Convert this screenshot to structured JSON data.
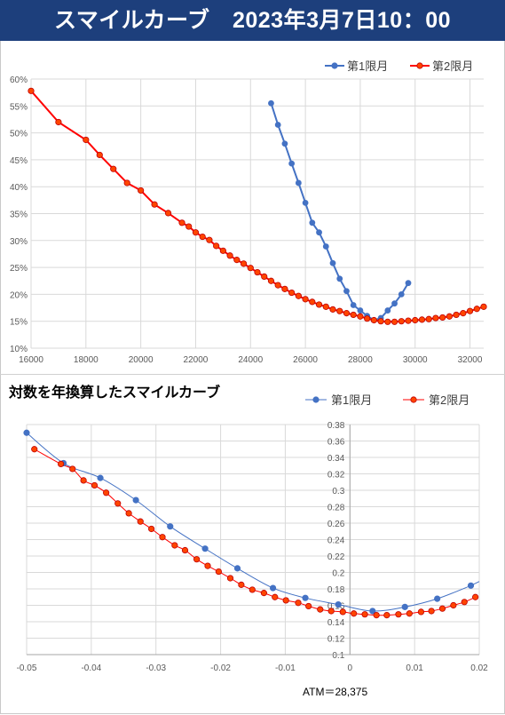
{
  "header": {
    "title": "スマイルカーブ　2023年3月7日10：00"
  },
  "chart2_title": "対数を年換算したスマイルカーブ",
  "atm_label": "ATM＝28,375",
  "colors": {
    "header_bg": "#1d3f7c",
    "series1": "#4472c4",
    "series2": "#ff0000",
    "series2_marker": "#ff4500"
  },
  "chart_data": [
    {
      "type": "line",
      "title": "",
      "xlim": [
        16000,
        32500
      ],
      "ylim": [
        0.1,
        0.6
      ],
      "x_ticks": [
        16000,
        18000,
        20000,
        22000,
        24000,
        26000,
        28000,
        30000,
        32000
      ],
      "y_ticks": [
        0.1,
        0.15,
        0.2,
        0.25,
        0.3,
        0.35,
        0.4,
        0.45,
        0.5,
        0.55,
        0.6
      ],
      "y_tick_labels": [
        "10%",
        "15%",
        "20%",
        "25%",
        "30%",
        "35%",
        "40%",
        "45%",
        "50%",
        "55%",
        "60%"
      ],
      "legend_position": "top-right",
      "grid": true,
      "series": [
        {
          "name": "第1限月",
          "x": [
            24750,
            25000,
            25250,
            25500,
            25750,
            26000,
            26250,
            26500,
            26750,
            27000,
            27250,
            27500,
            27750,
            28000,
            28250,
            28500,
            28750,
            29000,
            29250,
            29500,
            29750
          ],
          "y": [
            0.555,
            0.515,
            0.48,
            0.443,
            0.407,
            0.37,
            0.333,
            0.315,
            0.289,
            0.258,
            0.229,
            0.206,
            0.18,
            0.17,
            0.16,
            0.152,
            0.156,
            0.17,
            0.183,
            0.2,
            0.221
          ]
        },
        {
          "name": "第2限月",
          "x": [
            16000,
            17000,
            18000,
            18500,
            19000,
            19500,
            20000,
            20500,
            21000,
            21500,
            21750,
            22000,
            22250,
            22500,
            22750,
            23000,
            23250,
            23500,
            23750,
            24000,
            24250,
            24500,
            24750,
            25000,
            25250,
            25500,
            25750,
            26000,
            26250,
            26500,
            26750,
            27000,
            27250,
            27500,
            27750,
            28000,
            28250,
            28500,
            28750,
            29000,
            29250,
            29500,
            29750,
            30000,
            30250,
            30500,
            30750,
            31000,
            31250,
            31500,
            31750,
            32000,
            32250,
            32500
          ],
          "y": [
            0.578,
            0.52,
            0.487,
            0.459,
            0.433,
            0.407,
            0.393,
            0.367,
            0.351,
            0.333,
            0.326,
            0.315,
            0.307,
            0.301,
            0.29,
            0.281,
            0.272,
            0.264,
            0.257,
            0.249,
            0.241,
            0.233,
            0.225,
            0.217,
            0.21,
            0.203,
            0.197,
            0.191,
            0.186,
            0.181,
            0.177,
            0.172,
            0.169,
            0.165,
            0.162,
            0.159,
            0.155,
            0.152,
            0.15,
            0.149,
            0.149,
            0.15,
            0.151,
            0.152,
            0.153,
            0.154,
            0.156,
            0.157,
            0.159,
            0.162,
            0.165,
            0.169,
            0.173,
            0.177
          ]
        }
      ]
    },
    {
      "type": "line",
      "title": "対数を年換算したスマイルカーブ",
      "xlim": [
        -0.05,
        0.02
      ],
      "ylim": [
        0.1,
        0.38
      ],
      "x_ticks": [
        -0.05,
        -0.04,
        -0.03,
        -0.02,
        -0.01,
        0,
        0.01,
        0.02
      ],
      "x_tick_labels": [
        "-0.05",
        "-0.04",
        "-0.03",
        "-0.02",
        "-0.01",
        "0",
        "0.01",
        "0.02"
      ],
      "y_ticks": [
        0.1,
        0.12,
        0.14,
        0.16,
        0.18,
        0.2,
        0.22,
        0.24,
        0.26,
        0.28,
        0.3,
        0.32,
        0.34,
        0.36,
        0.38
      ],
      "y_tick_labels": [
        "0.1",
        "0.12",
        "0.14",
        "0.16",
        "0.18",
        "0.2",
        "0.22",
        "0.24",
        "0.26",
        "0.28",
        "0.3",
        "0.32",
        "0.34",
        "0.36",
        "0.38"
      ],
      "legend_position": "top-right",
      "grid": true,
      "series": [
        {
          "name": "第1限月",
          "x": [
            -0.05,
            -0.0443,
            -0.0386,
            -0.0331,
            -0.0278,
            -0.0224,
            -0.0174,
            -0.0119,
            -0.0069,
            -0.0018,
            0.0035,
            0.0085,
            0.0135,
            0.0187
          ],
          "y": [
            0.37,
            0.333,
            0.315,
            0.288,
            0.256,
            0.229,
            0.205,
            0.181,
            0.169,
            0.161,
            0.153,
            0.158,
            0.168,
            0.184
          ]
        },
        {
          "name": "第2限月",
          "x": [
            -0.0488,
            -0.0447,
            -0.0429,
            -0.0412,
            -0.0395,
            -0.0377,
            -0.0359,
            -0.0342,
            -0.0324,
            -0.0307,
            -0.029,
            -0.0271,
            -0.0255,
            -0.0237,
            -0.022,
            -0.0203,
            -0.0185,
            -0.0168,
            -0.0151,
            -0.0133,
            -0.0116,
            -0.0099,
            -0.008,
            -0.0064,
            -0.0046,
            -0.0029,
            -0.0011,
            0.0006,
            0.0023,
            0.0041,
            0.0057,
            0.0075,
            0.0092,
            0.011,
            0.0126,
            0.0143,
            0.016,
            0.0177,
            0.0194
          ],
          "y": [
            0.35,
            0.332,
            0.326,
            0.312,
            0.306,
            0.297,
            0.284,
            0.272,
            0.262,
            0.253,
            0.243,
            0.233,
            0.227,
            0.216,
            0.208,
            0.201,
            0.193,
            0.185,
            0.179,
            0.175,
            0.17,
            0.166,
            0.163,
            0.159,
            0.155,
            0.153,
            0.152,
            0.15,
            0.149,
            0.148,
            0.148,
            0.149,
            0.15,
            0.152,
            0.153,
            0.156,
            0.16,
            0.164,
            0.17
          ]
        }
      ]
    }
  ]
}
